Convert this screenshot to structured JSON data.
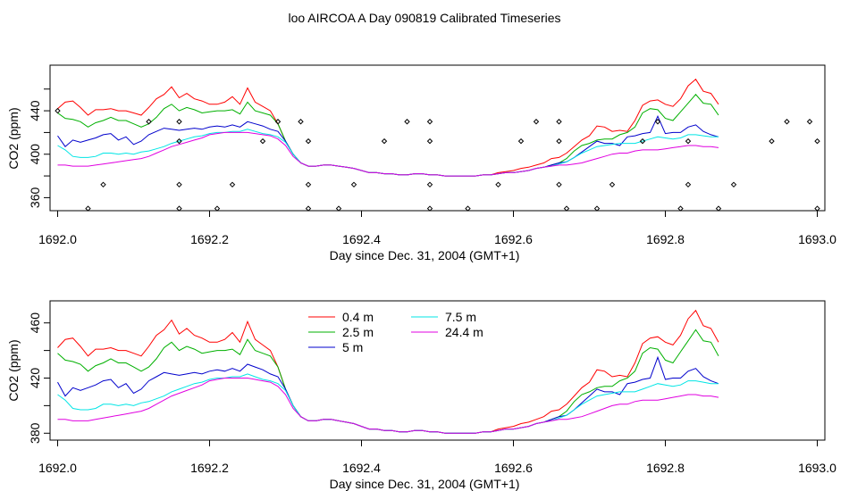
{
  "title": "loo AIRCOA A  Day 090819  Calibrated Timeseries",
  "colors": {
    "0.4 m": "#ff0000",
    "2.5 m": "#00b000",
    "5 m": "#0000cc",
    "7.5 m": "#00e5e5",
    "24.4 m": "#e000e0",
    "flag": "#000000"
  },
  "chart_data": [
    {
      "type": "line",
      "xlabel": "Day since Dec. 31, 2004 (GMT+1)",
      "ylabel": "CO2 (ppm)",
      "xlim": [
        1691.99,
        1693.01
      ],
      "ylim": [
        348,
        482
      ],
      "xticks": [
        1692.0,
        1692.2,
        1692.4,
        1692.6,
        1692.8,
        1693.0
      ],
      "xtick_labels": [
        "1692.0",
        "1692.2",
        "1692.4",
        "1692.6",
        "1692.8",
        "1693.0"
      ],
      "yticks": [
        360,
        380,
        400,
        420,
        440,
        460
      ],
      "ytick_labels": [
        "360",
        "",
        "400",
        "",
        "440",
        ""
      ],
      "legend": false,
      "x_start": 1692.0,
      "x_step": 0.01,
      "series": [
        {
          "name": "0.4 m",
          "values": [
            442,
            448,
            449,
            443,
            436,
            441,
            441,
            442,
            440,
            440,
            438,
            436,
            443,
            451,
            455,
            462,
            452,
            456,
            451,
            449,
            446,
            446,
            448,
            453,
            446,
            461,
            448,
            444,
            440,
            428,
            412,
            400,
            392,
            389,
            389,
            390,
            390,
            389,
            388,
            387,
            385,
            383,
            383,
            382,
            382,
            381,
            381,
            382,
            382,
            381,
            381,
            380,
            380,
            380,
            380,
            380,
            381,
            381,
            383,
            384,
            385,
            387,
            388,
            390,
            392,
            396,
            397,
            401,
            407,
            413,
            417,
            426,
            425,
            421,
            422,
            421,
            431,
            445,
            449,
            450,
            446,
            444,
            451,
            463,
            469,
            458,
            456,
            446
          ]
        },
        {
          "name": "2.5 m",
          "values": [
            438,
            433,
            432,
            430,
            425,
            429,
            431,
            434,
            431,
            431,
            428,
            425,
            428,
            434,
            442,
            446,
            440,
            443,
            441,
            438,
            439,
            440,
            440,
            441,
            437,
            448,
            440,
            438,
            436,
            428,
            412,
            400,
            392,
            389,
            389,
            390,
            390,
            389,
            388,
            387,
            385,
            383,
            383,
            382,
            382,
            381,
            381,
            382,
            382,
            381,
            381,
            380,
            380,
            380,
            380,
            380,
            381,
            381,
            382,
            383,
            383,
            384,
            385,
            387,
            388,
            390,
            392,
            396,
            403,
            408,
            410,
            413,
            414,
            414,
            418,
            420,
            425,
            438,
            442,
            441,
            433,
            431,
            439,
            447,
            455,
            447,
            446,
            436
          ]
        },
        {
          "name": "5 m",
          "values": [
            417,
            407,
            413,
            411,
            413,
            415,
            418,
            419,
            413,
            416,
            409,
            412,
            418,
            421,
            424,
            423,
            422,
            423,
            424,
            423,
            425,
            426,
            425,
            427,
            425,
            430,
            428,
            426,
            423,
            421,
            412,
            400,
            392,
            389,
            389,
            390,
            390,
            389,
            388,
            387,
            385,
            383,
            383,
            382,
            382,
            381,
            381,
            382,
            382,
            381,
            381,
            380,
            380,
            380,
            380,
            380,
            381,
            381,
            382,
            383,
            383,
            384,
            385,
            387,
            388,
            390,
            392,
            393,
            397,
            402,
            407,
            412,
            410,
            410,
            408,
            416,
            417,
            419,
            420,
            435,
            419,
            420,
            420,
            425,
            427,
            421,
            418,
            416
          ]
        },
        {
          "name": "7.5 m",
          "values": [
            408,
            404,
            398,
            397,
            397,
            398,
            401,
            401,
            400,
            401,
            400,
            402,
            403,
            405,
            407,
            410,
            412,
            414,
            416,
            417,
            419,
            420,
            420,
            421,
            421,
            423,
            421,
            419,
            418,
            416,
            411,
            400,
            392,
            389,
            389,
            390,
            390,
            389,
            388,
            387,
            385,
            383,
            383,
            382,
            382,
            381,
            381,
            382,
            382,
            381,
            381,
            380,
            380,
            380,
            380,
            380,
            381,
            381,
            382,
            383,
            383,
            384,
            385,
            387,
            388,
            389,
            391,
            393,
            397,
            401,
            404,
            407,
            408,
            409,
            410,
            410,
            410,
            412,
            414,
            416,
            415,
            414,
            415,
            418,
            418,
            417,
            416,
            416
          ]
        },
        {
          "name": "24.4 m",
          "values": [
            390,
            390,
            389,
            389,
            389,
            390,
            391,
            392,
            393,
            394,
            395,
            396,
            398,
            401,
            404,
            407,
            409,
            411,
            413,
            415,
            418,
            419,
            420,
            420,
            420,
            420,
            419,
            418,
            417,
            414,
            408,
            398,
            392,
            389,
            389,
            390,
            390,
            389,
            388,
            387,
            385,
            383,
            383,
            382,
            382,
            381,
            381,
            382,
            382,
            381,
            381,
            380,
            380,
            380,
            380,
            380,
            381,
            381,
            382,
            383,
            383,
            384,
            385,
            387,
            388,
            389,
            390,
            390,
            391,
            392,
            394,
            396,
            398,
            400,
            401,
            401,
            403,
            404,
            404,
            404,
            405,
            406,
            407,
            408,
            408,
            407,
            407,
            406
          ]
        }
      ],
      "flags": {
        "x": [
          1692.0,
          1692.04,
          1692.06,
          1692.12,
          1692.16,
          1692.16,
          1692.16,
          1692.16,
          1692.21,
          1692.23,
          1692.27,
          1692.29,
          1692.32,
          1692.33,
          1692.33,
          1692.33,
          1692.37,
          1692.39,
          1692.43,
          1692.46,
          1692.49,
          1692.49,
          1692.49,
          1692.49,
          1692.54,
          1692.58,
          1692.61,
          1692.63,
          1692.66,
          1692.66,
          1692.66,
          1692.67,
          1692.71,
          1692.73,
          1692.77,
          1692.79,
          1692.82,
          1692.83,
          1692.83,
          1692.87,
          1692.89,
          1692.94,
          1692.96,
          1692.99,
          1693.0,
          1693.0
        ],
        "y": [
          440,
          350,
          372,
          430,
          430,
          412,
          372,
          350,
          350,
          372,
          412,
          430,
          430,
          412,
          372,
          350,
          350,
          372,
          412,
          430,
          430,
          412,
          372,
          350,
          350,
          372,
          412,
          430,
          430,
          412,
          372,
          350,
          350,
          372,
          412,
          430,
          350,
          372,
          412,
          350,
          372,
          412,
          430,
          430,
          412,
          350
        ]
      }
    },
    {
      "type": "line",
      "xlabel": "Day since Dec. 31, 2004 (GMT+1)",
      "ylabel": "CO2 (ppm)",
      "xlim": [
        1691.99,
        1693.01
      ],
      "ylim": [
        375,
        476
      ],
      "xticks": [
        1692.0,
        1692.2,
        1692.4,
        1692.6,
        1692.8,
        1693.0
      ],
      "xtick_labels": [
        "1692.0",
        "1692.2",
        "1692.4",
        "1692.6",
        "1692.8",
        "1693.0"
      ],
      "yticks": [
        380,
        400,
        420,
        440,
        460
      ],
      "ytick_labels": [
        "380",
        "",
        "420",
        "",
        "460"
      ],
      "legend": true,
      "legend_position": "top-center",
      "legend_entries": [
        "0.4 m",
        "2.5 m",
        "5 m",
        "7.5 m",
        "24.4 m"
      ],
      "x_start": 1692.0,
      "x_step": 0.01,
      "series": "same as panel 1"
    }
  ]
}
